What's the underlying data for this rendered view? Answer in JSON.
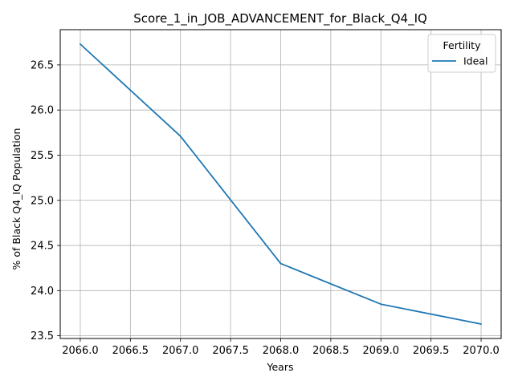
{
  "chart_data": {
    "type": "line",
    "title": "Score_1_in_JOB_ADVANCEMENT_for_Black_Q4_IQ",
    "xlabel": "Years",
    "ylabel": "% of Black Q4_IQ Population",
    "x": [
      2066,
      2067,
      2068,
      2069,
      2070
    ],
    "series": [
      {
        "name": "Ideal",
        "color": "#1f77b4",
        "values": [
          26.73,
          25.71,
          24.3,
          23.85,
          23.63
        ]
      }
    ],
    "xlim": [
      2065.8,
      2070.2
    ],
    "ylim": [
      23.47,
      26.89
    ],
    "x_ticks": [
      2066.0,
      2066.5,
      2067.0,
      2067.5,
      2068.0,
      2068.5,
      2069.0,
      2069.5,
      2070.0
    ],
    "x_tick_labels": [
      "2066.0",
      "2066.5",
      "2067.0",
      "2067.5",
      "2068.0",
      "2068.5",
      "2069.0",
      "2069.5",
      "2070.0"
    ],
    "y_ticks": [
      23.5,
      24.0,
      24.5,
      25.0,
      25.5,
      26.0,
      26.5
    ],
    "y_tick_labels": [
      "23.5",
      "24.0",
      "24.5",
      "25.0",
      "25.5",
      "26.0",
      "26.5"
    ],
    "grid": true,
    "legend": {
      "title": "Fertility",
      "placement": "top-right"
    }
  }
}
